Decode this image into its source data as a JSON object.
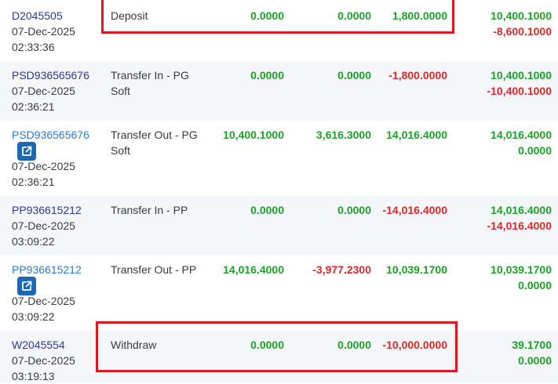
{
  "rows": [
    {
      "id": "D2045505",
      "date": "07-Dec-2025",
      "time": "02:33:36",
      "type_l1": "Deposit",
      "type_l2": "",
      "v1": "0.0000",
      "v2": "0.0000",
      "v3": "1,800.0000",
      "b1": "10,400.1000",
      "b2": "-8,600.1000"
    },
    {
      "id": "PSD936565676",
      "date": "07-Dec-2025",
      "time": "02:36:21",
      "type_l1": "Transfer In - PG",
      "type_l2": "Soft",
      "v1": "0.0000",
      "v2": "0.0000",
      "v3": "-1,800.0000",
      "b1": "10,400.1000",
      "b2": "-10,400.1000"
    },
    {
      "id": "PSD936565676",
      "date": "07-Dec-2025",
      "time": "02:36:21",
      "type_l1": "Transfer Out - PG",
      "type_l2": "Soft",
      "v1": "10,400.1000",
      "v2": "3,616.3000",
      "v3": "14,016.4000",
      "b1": "14,016.4000",
      "b2": "0.0000"
    },
    {
      "id": "PP936615212",
      "date": "07-Dec-2025",
      "time": "03:09:22",
      "type_l1": "Transfer In - PP",
      "type_l2": "",
      "v1": "0.0000",
      "v2": "0.0000",
      "v3": "-14,016.4000",
      "b1": "14,016.4000",
      "b2": "-14,016.4000"
    },
    {
      "id": "PP936615212",
      "date": "07-Dec-2025",
      "time": "03:09:22",
      "type_l1": "Transfer Out - PP",
      "type_l2": "",
      "v1": "14,016.4000",
      "v2": "-3,977.2300",
      "v3": "10,039.1700",
      "b1": "10,039.1700",
      "b2": "0.0000"
    },
    {
      "id": "W2045554",
      "date": "07-Dec-2025",
      "time": "03:19:13",
      "type_l1": "Withdraw",
      "type_l2": "",
      "v1": "0.0000",
      "v2": "0.0000",
      "v3": "-10,000.0000",
      "b1": "39.1700",
      "b2": "0.0000"
    }
  ],
  "colors": {
    "positive": "#1e9e2a",
    "negative": "#d72a2a",
    "highlight": "#e0161f",
    "id_link": "#2a7ad0",
    "id_text": "#2b3a8c",
    "alt_row": "#f4f6fa",
    "icon_btn": "#1f67b5"
  },
  "icons": {
    "external_link": "external-link-icon"
  }
}
